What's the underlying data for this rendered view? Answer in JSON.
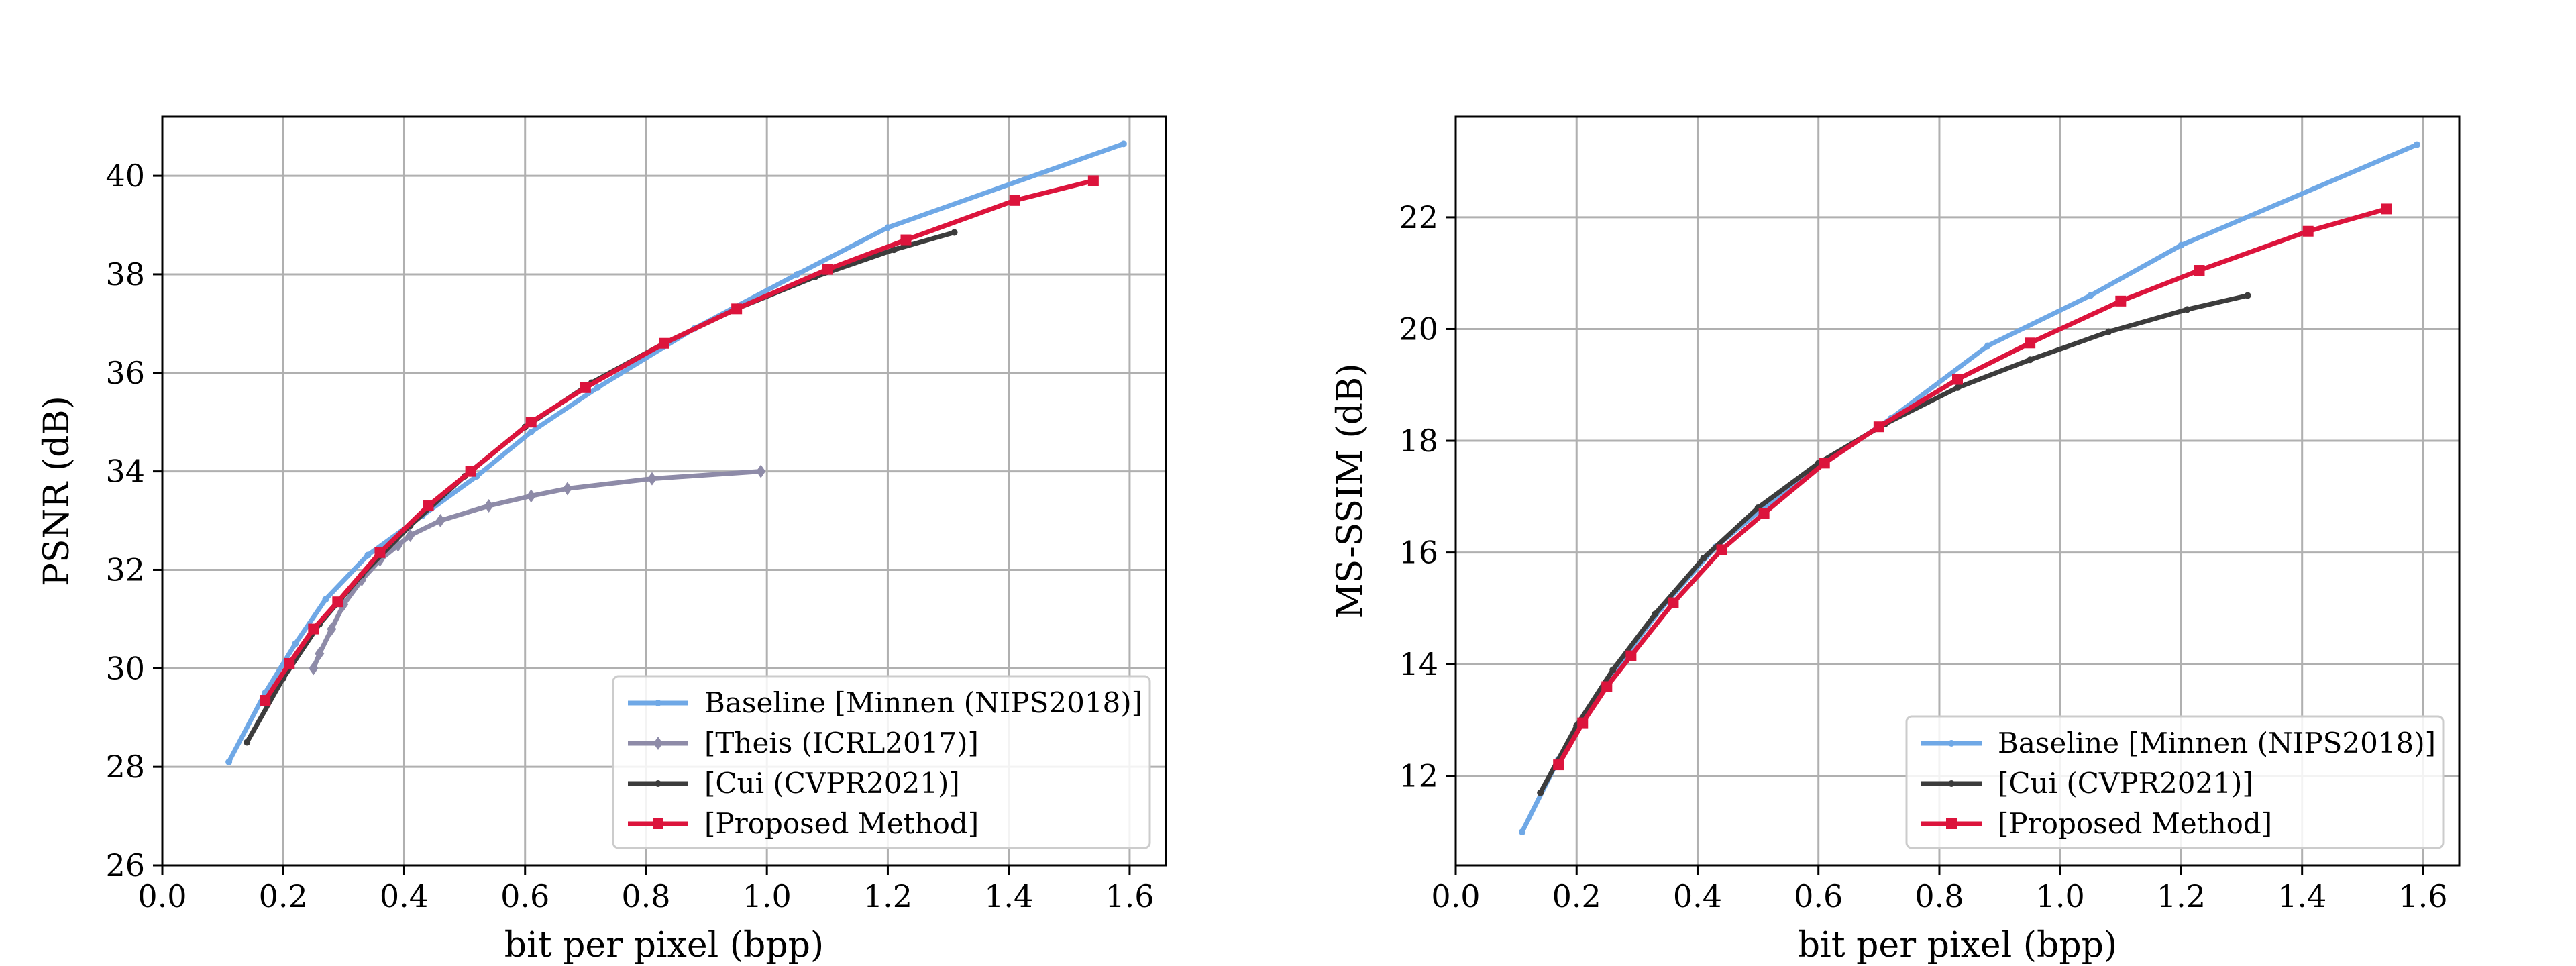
{
  "figure": {
    "colors": {
      "baseline": "#6FA8E6",
      "theis": "#8E8BA8",
      "cui": "#3C3C3C",
      "proposed": "#DC143C",
      "grid": "#B0B0B0"
    }
  },
  "chart_data": [
    {
      "type": "line",
      "title": "",
      "xlabel": "bit per pixel (bpp)",
      "ylabel": "PSNR (dB)",
      "xlim": [
        0.0,
        1.66
      ],
      "ylim": [
        26,
        41.2
      ],
      "xticks": [
        0.0,
        0.2,
        0.4,
        0.6,
        0.8,
        1.0,
        1.2,
        1.4,
        1.6
      ],
      "yticks": [
        26,
        28,
        30,
        32,
        34,
        36,
        38,
        40
      ],
      "xtick_labels": [
        "0.0",
        "0.2",
        "0.4",
        "0.6",
        "0.8",
        "1.0",
        "1.2",
        "1.4",
        "1.6"
      ],
      "ytick_labels": [
        "26",
        "28",
        "30",
        "32",
        "34",
        "36",
        "38",
        "40"
      ],
      "grid": true,
      "legend_position": "bottom-right",
      "series": [
        {
          "name": "Baseline [Minnen (NIPS2018)]",
          "color_key": "baseline",
          "marker": "dot",
          "x": [
            0.11,
            0.17,
            0.22,
            0.27,
            0.34,
            0.43,
            0.52,
            0.61,
            0.72,
            0.88,
            1.05,
            1.2,
            1.59
          ],
          "y": [
            28.1,
            29.5,
            30.5,
            31.4,
            32.3,
            33.1,
            33.9,
            34.8,
            35.7,
            36.9,
            38.0,
            38.95,
            40.65
          ]
        },
        {
          "name": "[Theis (ICRL2017)]",
          "color_key": "theis",
          "marker": "diamond",
          "x": [
            0.25,
            0.26,
            0.28,
            0.3,
            0.33,
            0.36,
            0.39,
            0.41,
            0.46,
            0.54,
            0.61,
            0.67,
            0.81,
            0.99
          ],
          "y": [
            30.0,
            30.3,
            30.8,
            31.3,
            31.8,
            32.2,
            32.5,
            32.7,
            33.0,
            33.3,
            33.5,
            33.65,
            33.85,
            34.0
          ]
        },
        {
          "name": "[Cui (CVPR2021)]",
          "color_key": "cui",
          "marker": "dot",
          "x": [
            0.14,
            0.2,
            0.26,
            0.33,
            0.41,
            0.5,
            0.6,
            0.71,
            0.83,
            0.95,
            1.08,
            1.21,
            1.31
          ],
          "y": [
            28.5,
            29.8,
            30.9,
            31.9,
            32.9,
            33.9,
            34.9,
            35.8,
            36.6,
            37.3,
            37.95,
            38.5,
            38.85
          ]
        },
        {
          "name": "[Proposed Method]",
          "color_key": "proposed",
          "marker": "square",
          "x": [
            0.17,
            0.21,
            0.25,
            0.29,
            0.36,
            0.44,
            0.51,
            0.61,
            0.7,
            0.83,
            0.95,
            1.1,
            1.23,
            1.41,
            1.54
          ],
          "y": [
            29.35,
            30.1,
            30.8,
            31.35,
            32.35,
            33.3,
            34.0,
            35.0,
            35.7,
            36.6,
            37.3,
            38.1,
            38.7,
            39.5,
            39.9
          ]
        }
      ]
    },
    {
      "type": "line",
      "title": "",
      "xlabel": "bit per pixel (bpp)",
      "ylabel": "MS-SSIM (dB)",
      "xlim": [
        0.0,
        1.66
      ],
      "ylim": [
        10.4,
        23.8
      ],
      "xticks": [
        0.0,
        0.2,
        0.4,
        0.6,
        0.8,
        1.0,
        1.2,
        1.4,
        1.6
      ],
      "yticks": [
        12,
        14,
        16,
        18,
        20,
        22
      ],
      "xtick_labels": [
        "0.0",
        "0.2",
        "0.4",
        "0.6",
        "0.8",
        "1.0",
        "1.2",
        "1.4",
        "1.6"
      ],
      "ytick_labels": [
        "12",
        "14",
        "16",
        "18",
        "20",
        "22"
      ],
      "grid": true,
      "legend_position": "bottom-right",
      "series": [
        {
          "name": "Baseline [Minnen (NIPS2018)]",
          "color_key": "baseline",
          "marker": "dot",
          "x": [
            0.11,
            0.17,
            0.22,
            0.27,
            0.34,
            0.43,
            0.52,
            0.61,
            0.72,
            0.88,
            1.05,
            1.2,
            1.59
          ],
          "y": [
            11.0,
            12.3,
            13.2,
            14.0,
            15.0,
            16.1,
            16.9,
            17.6,
            18.4,
            19.7,
            20.6,
            21.5,
            23.3
          ]
        },
        {
          "name": "[Cui (CVPR2021)]",
          "color_key": "cui",
          "marker": "dot",
          "x": [
            0.14,
            0.2,
            0.26,
            0.33,
            0.41,
            0.5,
            0.6,
            0.71,
            0.83,
            0.95,
            1.08,
            1.21,
            1.31
          ],
          "y": [
            11.7,
            12.9,
            13.9,
            14.9,
            15.9,
            16.8,
            17.6,
            18.3,
            18.95,
            19.45,
            19.95,
            20.35,
            20.6
          ]
        },
        {
          "name": "[Proposed Method]",
          "color_key": "proposed",
          "marker": "square",
          "x": [
            0.17,
            0.21,
            0.25,
            0.29,
            0.36,
            0.44,
            0.51,
            0.61,
            0.7,
            0.83,
            0.95,
            1.1,
            1.23,
            1.41,
            1.54
          ],
          "y": [
            12.2,
            12.95,
            13.6,
            14.15,
            15.1,
            16.05,
            16.7,
            17.6,
            18.25,
            19.1,
            19.75,
            20.5,
            21.05,
            21.75,
            22.15
          ]
        }
      ]
    }
  ]
}
